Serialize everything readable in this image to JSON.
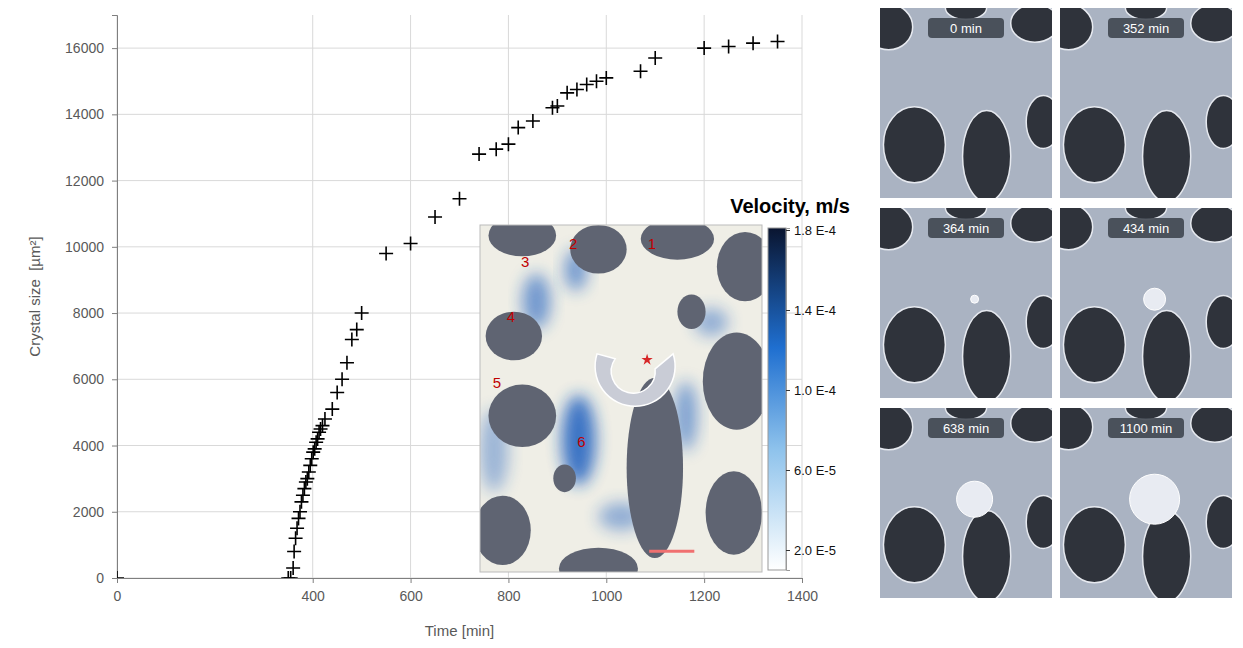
{
  "chart_data": {
    "type": "scatter",
    "x_label": "Time [min]",
    "y_label": "Crystal size  [µm²]",
    "x": [
      0,
      350,
      355,
      360,
      362,
      365,
      368,
      371,
      374,
      377,
      380,
      383,
      386,
      389,
      392,
      395,
      398,
      401,
      404,
      407,
      410,
      413,
      416,
      420,
      425,
      440,
      450,
      460,
      470,
      480,
      490,
      500,
      550,
      600,
      650,
      700,
      740,
      775,
      800,
      820,
      850,
      890,
      900,
      920,
      940,
      960,
      980,
      1000,
      1070,
      1100,
      1200,
      1250,
      1300,
      1350
    ],
    "values": [
      0,
      0,
      0,
      300,
      800,
      1200,
      1500,
      1800,
      2000,
      2300,
      2500,
      2700,
      2900,
      3000,
      3200,
      3400,
      3600,
      3800,
      3900,
      4100,
      4200,
      4400,
      4500,
      4600,
      4800,
      5100,
      5600,
      6000,
      6500,
      7200,
      7500,
      8000,
      9800,
      10100,
      10900,
      11450,
      12800,
      12950,
      13100,
      13600,
      13800,
      14200,
      14250,
      14650,
      14750,
      14900,
      15000,
      15100,
      15300,
      15700,
      16000,
      16050,
      16150,
      16200
    ],
    "color": "#000000",
    "marker": "plus",
    "xlim": [
      0,
      1400
    ],
    "xticks": [
      0,
      400,
      600,
      800,
      1000,
      1200,
      1400
    ],
    "ylim": [
      0,
      17000
    ],
    "yticks": [
      0,
      2000,
      4000,
      6000,
      8000,
      10000,
      12000,
      14000,
      16000
    ],
    "grid": true
  },
  "inset": {
    "labels": [
      "1",
      "2",
      "3",
      "4",
      "5",
      "6"
    ],
    "colorbar": {
      "title": "Velocity, m/s",
      "range": [
        1e-05,
        0.000181
      ],
      "ticks": [
        {
          "value": 0.00018,
          "label": "1.8 E-4"
        },
        {
          "value": 0.00014,
          "label": "1.4 E-4"
        },
        {
          "value": 0.0001,
          "label": "1.0 E-4"
        },
        {
          "value": 6e-05,
          "label": "6.0 E-5"
        },
        {
          "value": 2e-05,
          "label": "2.0 E-5"
        }
      ]
    }
  },
  "photos": [
    "0 min",
    "352 min",
    "364 min",
    "434 min",
    "638 min",
    "1100 min"
  ]
}
